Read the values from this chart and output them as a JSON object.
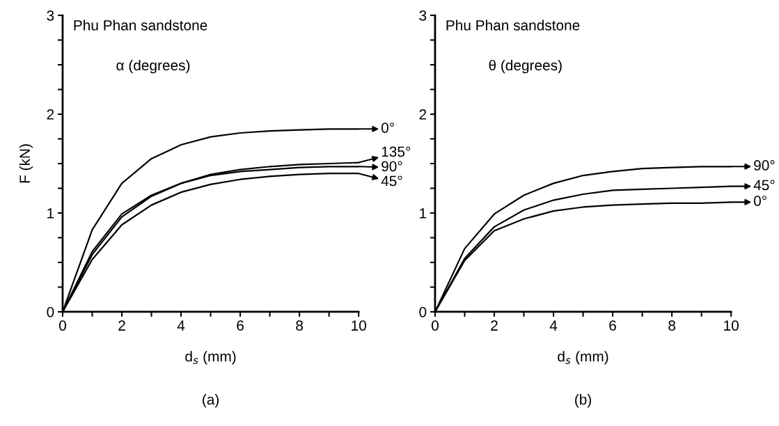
{
  "chart_data": [
    {
      "type": "line",
      "xlabel": "d$_{s}$ (mm)",
      "ylabel": "F (kN)",
      "annotations": [
        "Phu Phan sandstone",
        "α (degrees)",
        "(a)"
      ],
      "x": [
        0,
        1,
        2,
        3,
        4,
        5,
        6,
        7,
        8,
        9,
        10
      ],
      "series": [
        {
          "name": "0°",
          "color": "#000000",
          "values": [
            0,
            0.83,
            1.3,
            1.55,
            1.69,
            1.77,
            1.81,
            1.83,
            1.84,
            1.85,
            1.85
          ]
        },
        {
          "name": "135°",
          "color": "#000000",
          "values": [
            0,
            0.61,
            0.99,
            1.18,
            1.3,
            1.39,
            1.44,
            1.47,
            1.49,
            1.5,
            1.51
          ]
        },
        {
          "name": "90°",
          "color": "#000000",
          "values": [
            0,
            0.58,
            0.96,
            1.17,
            1.3,
            1.38,
            1.42,
            1.44,
            1.46,
            1.47,
            1.47
          ]
        },
        {
          "name": "45°",
          "color": "#000000",
          "values": [
            0,
            0.53,
            0.88,
            1.08,
            1.21,
            1.29,
            1.34,
            1.37,
            1.39,
            1.4,
            1.4
          ]
        }
      ],
      "xlim": [
        0,
        10
      ],
      "xticks": [
        0,
        {
          "value": 1,
          "label": null
        },
        2,
        {
          "value": 3,
          "label": null
        },
        4,
        {
          "value": 5,
          "label": null
        },
        6,
        {
          "value": 7,
          "label": null
        },
        8,
        {
          "value": 9,
          "label": null
        },
        10
      ],
      "ylim": [
        0,
        3
      ],
      "yticks": [
        0,
        {
          "value": 0.25,
          "label": null
        },
        {
          "value": 0.5,
          "label": null
        },
        {
          "value": 0.75,
          "label": null
        },
        1,
        {
          "value": 1.25,
          "label": null
        },
        {
          "value": 1.5,
          "label": null
        },
        {
          "value": 1.75,
          "label": null
        },
        2,
        {
          "value": 2.25,
          "label": null
        },
        {
          "value": 2.5,
          "label": null
        },
        {
          "value": 2.75,
          "label": null
        },
        3
      ],
      "grid": false,
      "legend": "right",
      "marker": "none",
      "line_style": "solid"
    },
    {
      "type": "line",
      "xlabel": "d$_{s}$ (mm)",
      "annotations": [
        "Phu Phan sandstone",
        "θ (degrees)",
        "(b)"
      ],
      "x": [
        0,
        1,
        2,
        3,
        4,
        5,
        6,
        7,
        8,
        9,
        10
      ],
      "series": [
        {
          "name": "90°",
          "color": "#000000",
          "values": [
            0,
            0.64,
            0.99,
            1.18,
            1.3,
            1.38,
            1.42,
            1.45,
            1.46,
            1.47,
            1.47
          ]
        },
        {
          "name": "45°",
          "color": "#000000",
          "values": [
            0,
            0.54,
            0.86,
            1.03,
            1.13,
            1.19,
            1.23,
            1.24,
            1.25,
            1.26,
            1.27
          ]
        },
        {
          "name": "0°",
          "color": "#000000",
          "values": [
            0,
            0.52,
            0.82,
            0.94,
            1.02,
            1.06,
            1.08,
            1.09,
            1.1,
            1.1,
            1.11
          ]
        }
      ],
      "xlim": [
        0,
        10
      ],
      "xticks": [
        0,
        {
          "value": 1,
          "label": null
        },
        2,
        {
          "value": 3,
          "label": null
        },
        4,
        {
          "value": 5,
          "label": null
        },
        6,
        {
          "value": 7,
          "label": null
        },
        8,
        {
          "value": 9,
          "label": null
        },
        10
      ],
      "ylim": [
        0,
        3
      ],
      "yticks": [
        0,
        {
          "value": 0.25,
          "label": null
        },
        {
          "value": 0.5,
          "label": null
        },
        {
          "value": 0.75,
          "label": null
        },
        1,
        {
          "value": 1.25,
          "label": null
        },
        {
          "value": 1.5,
          "label": null
        },
        {
          "value": 1.75,
          "label": null
        },
        2,
        {
          "value": 2.25,
          "label": null
        },
        {
          "value": 2.5,
          "label": null
        },
        {
          "value": 2.75,
          "label": null
        },
        3
      ],
      "grid": false,
      "legend": "right",
      "marker": "none",
      "line_style": "solid"
    }
  ]
}
